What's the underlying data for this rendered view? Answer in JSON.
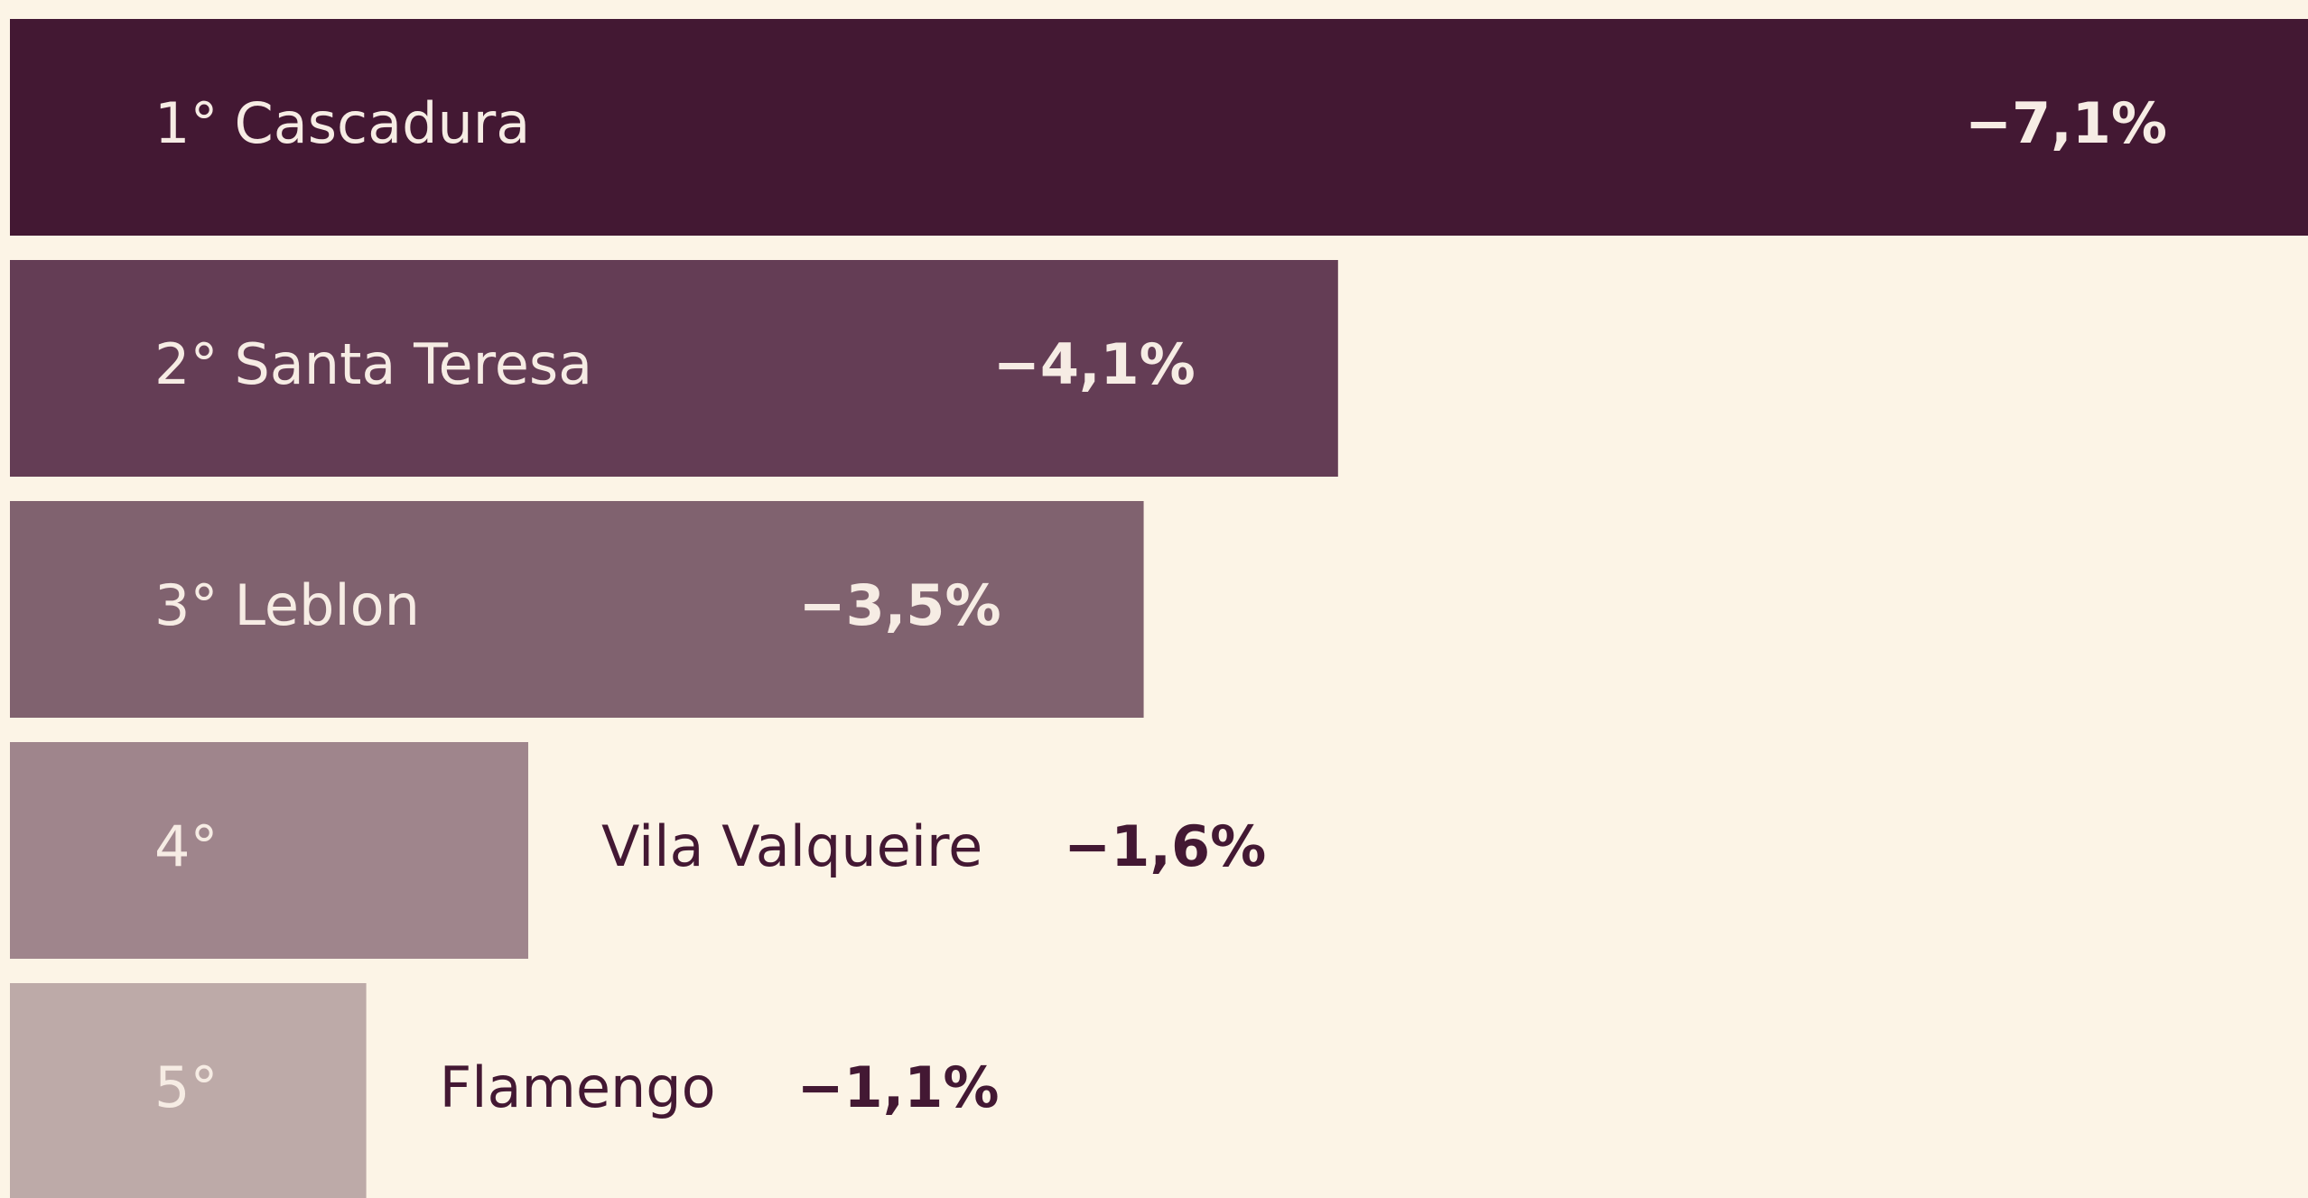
{
  "chart_data": {
    "type": "bar",
    "orientation": "horizontal",
    "ranks": [
      "1°",
      "2°",
      "3°",
      "4°",
      "5°"
    ],
    "categories": [
      "Cascadura",
      "Santa Teresa",
      "Leblon",
      "Vila Valqueire",
      "Flamengo"
    ],
    "values": [
      -7.1,
      -4.1,
      -3.5,
      -1.6,
      -1.1
    ],
    "value_labels": [
      "−7,1%",
      "−4,1%",
      "−3,5%",
      "−1,6%",
      "−1,1%"
    ],
    "colors": [
      "#431833",
      "#643d55",
      "#80626f",
      "#9f858c",
      "#bdaaa8"
    ],
    "xlim": [
      0,
      -7.1
    ]
  }
}
